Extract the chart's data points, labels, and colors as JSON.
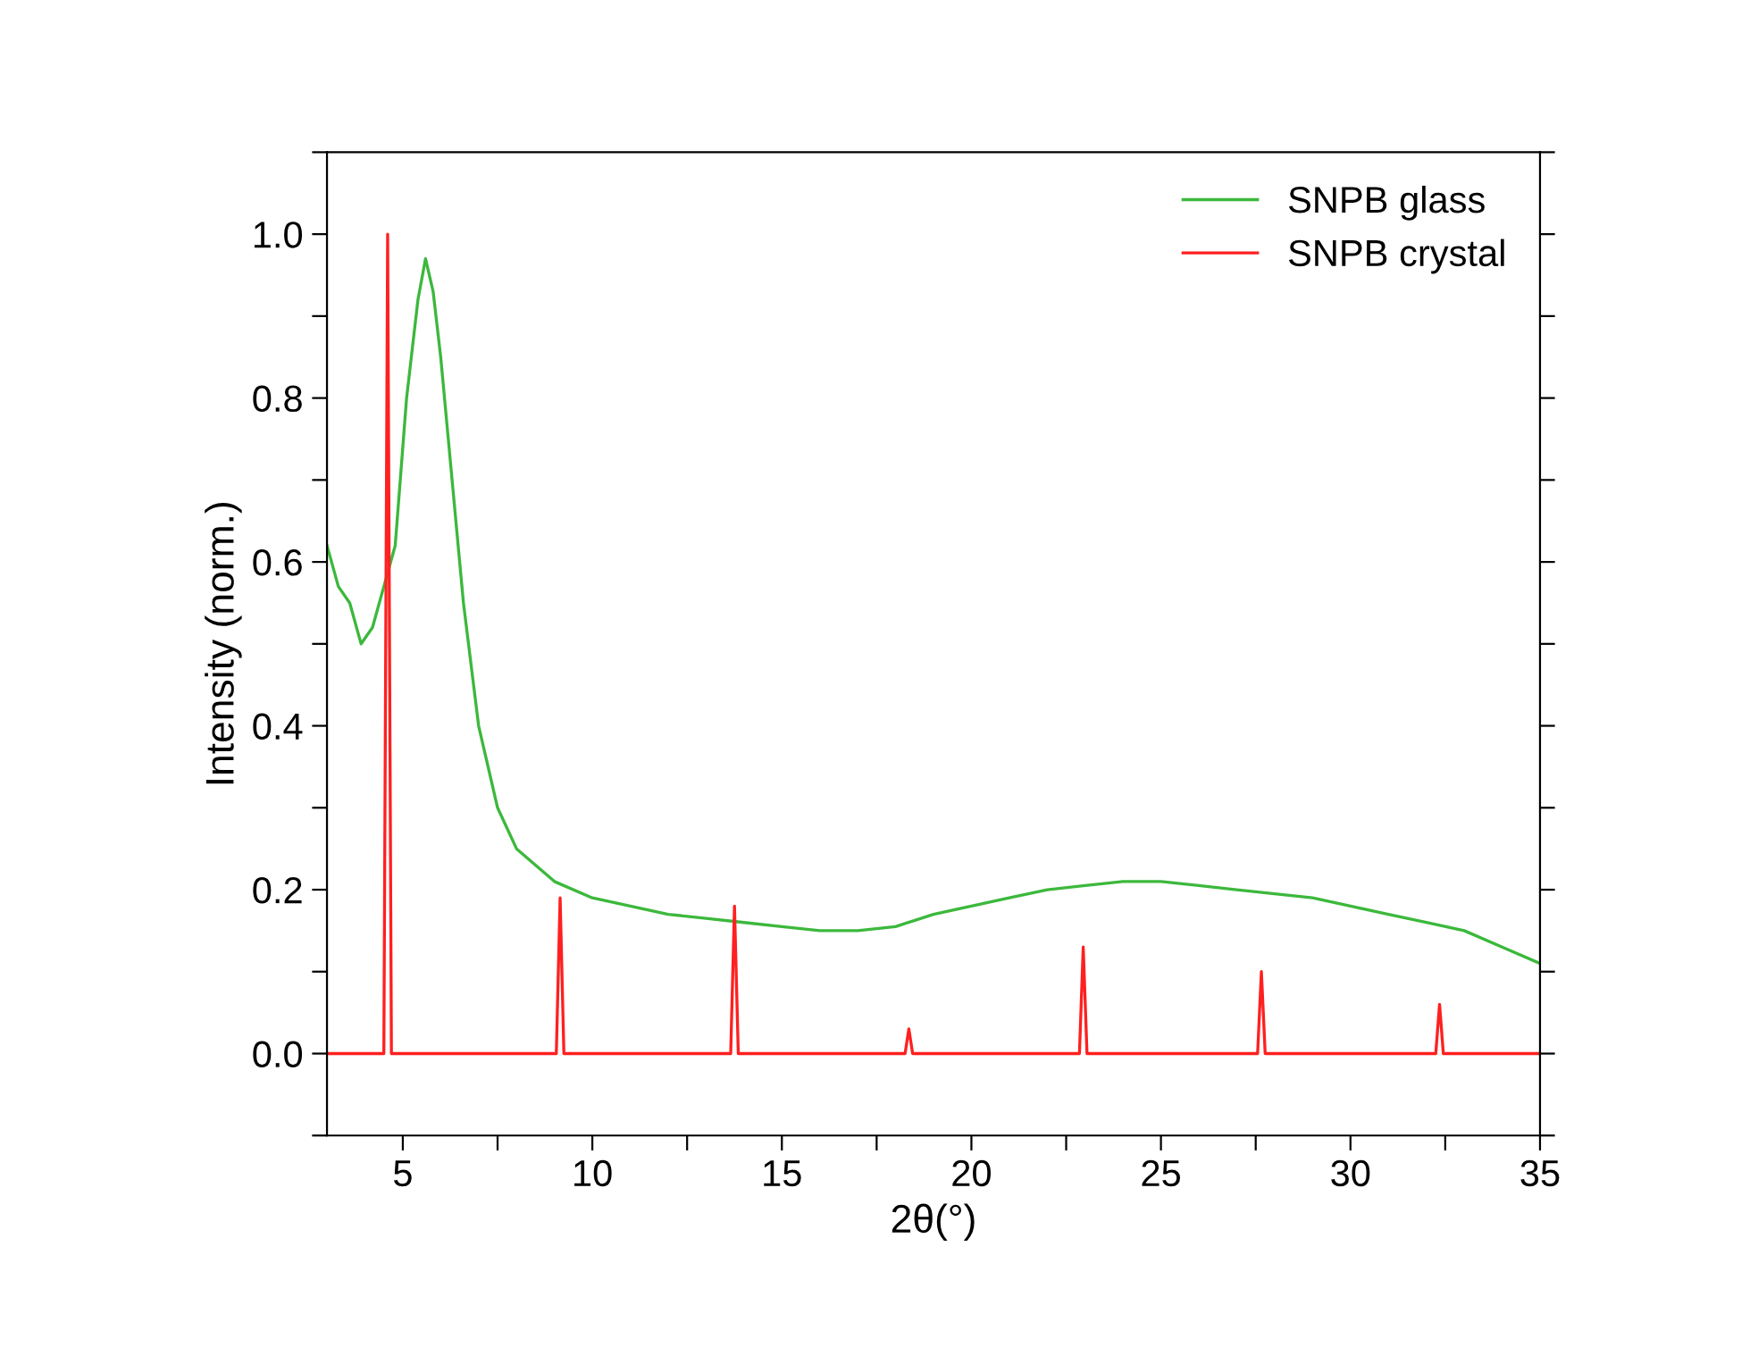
{
  "chart_data": {
    "type": "line",
    "xlabel": "2θ(°)",
    "ylabel": "Intensity (norm.)",
    "xlim": [
      3,
      35
    ],
    "ylim": [
      -0.1,
      1.1
    ],
    "xticks": [
      5,
      {
        "value": 7.5,
        "label": null
      },
      10,
      {
        "value": 12.5,
        "label": null
      },
      15,
      {
        "value": 17.5,
        "label": null
      },
      20,
      {
        "value": 22.5,
        "label": null
      },
      25,
      {
        "value": 27.5,
        "label": null
      },
      30,
      {
        "value": 32.5,
        "label": null
      },
      35
    ],
    "yticks": [
      {
        "value": -0.1,
        "label": null
      },
      {
        "value": 0,
        "label": "0.0"
      },
      {
        "value": 0.1,
        "label": null
      },
      0.2,
      {
        "value": 0.3,
        "label": null
      },
      0.4,
      {
        "value": 0.5,
        "label": null
      },
      0.6,
      {
        "value": 0.7,
        "label": null
      },
      0.8,
      {
        "value": 0.9,
        "label": null
      },
      {
        "value": 1,
        "label": "1.0"
      },
      {
        "value": 1.1,
        "label": null
      }
    ],
    "legend": "top right",
    "grid": false,
    "series": [
      {
        "name": "SNPB glass",
        "color": "#3cb83c",
        "x": [
          3,
          3.3,
          3.6,
          3.9,
          4.2,
          4.5,
          4.8,
          5.1,
          5.4,
          5.6,
          5.8,
          6.0,
          6.3,
          6.6,
          7.0,
          7.5,
          8,
          9,
          10,
          11,
          12,
          13,
          14,
          15,
          16,
          17,
          18,
          19,
          20,
          21,
          22,
          23,
          24,
          25,
          26,
          27,
          28,
          29,
          30,
          31,
          32,
          33,
          34,
          35
        ],
        "values": [
          0.62,
          0.57,
          0.55,
          0.5,
          0.52,
          0.57,
          0.62,
          0.8,
          0.92,
          0.97,
          0.93,
          0.85,
          0.7,
          0.55,
          0.4,
          0.3,
          0.25,
          0.21,
          0.19,
          0.18,
          0.17,
          0.165,
          0.16,
          0.155,
          0.15,
          0.15,
          0.155,
          0.17,
          0.18,
          0.19,
          0.2,
          0.205,
          0.21,
          0.21,
          0.205,
          0.2,
          0.195,
          0.19,
          0.18,
          0.17,
          0.16,
          0.15,
          0.13,
          0.11
        ]
      },
      {
        "name": "SNPB crystal",
        "color": "#ff2020",
        "x": [
          3,
          4.5,
          4.6,
          4.7,
          9.05,
          9.15,
          9.25,
          13.65,
          13.75,
          13.85,
          18.25,
          18.35,
          18.45,
          22.85,
          22.95,
          23.05,
          27.55,
          27.65,
          27.75,
          32.25,
          32.35,
          32.45,
          35
        ],
        "values": [
          0,
          0,
          1.0,
          0,
          0,
          0.19,
          0,
          0,
          0.18,
          0,
          0,
          0.03,
          0,
          0,
          0.13,
          0,
          0,
          0.1,
          0,
          0,
          0.06,
          0,
          0
        ]
      }
    ]
  }
}
